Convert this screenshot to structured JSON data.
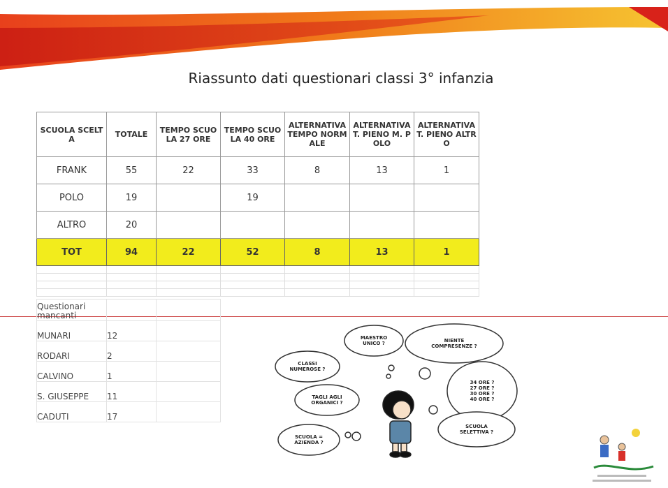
{
  "title": "Riassunto dati questionari classi 3° infanzia",
  "table": {
    "header": [
      "SCUOLA SCELTA",
      "TOTALE",
      "TEMPO SCUOLA 27 ORE",
      "TEMPO SCUOLA 40 ORE",
      "ALTERNATIVA TEMPO NORMALE",
      "ALTERNATIVA T. PIENO M. POLO",
      "ALTERNATIVA T. PIENO ALTRO"
    ],
    "rows": [
      [
        "FRANK",
        55,
        22,
        33,
        8,
        13,
        1
      ],
      [
        "POLO",
        19,
        null,
        19,
        null,
        null,
        null
      ],
      [
        "ALTRO",
        20,
        null,
        null,
        null,
        null,
        null
      ],
      [
        "TOT",
        94,
        22,
        52,
        8,
        13,
        1
      ]
    ]
  },
  "missing": {
    "label": "Questionari mancanti",
    "rows": [
      [
        "MUNARI",
        12
      ],
      [
        "RODARI",
        2
      ],
      [
        "CALVINO",
        1
      ],
      [
        "S. GIUSEPPE",
        11
      ],
      [
        "CADUTI",
        17
      ]
    ]
  },
  "cartoon": {
    "bubbles": [
      {
        "lines": [
          "MAESTRO",
          "UNICO ?"
        ]
      },
      {
        "lines": [
          "NIENTE",
          "COMPRESENZE ?"
        ]
      },
      {
        "lines": [
          "CLASSI",
          "NUMEROSE ?"
        ]
      },
      {
        "lines": [
          "34 ORE ?",
          "27 ORE ?",
          "30 ORE ?",
          "40 ORE ?"
        ]
      },
      {
        "lines": [
          "TAGLI AGLI",
          "ORGANICI ?"
        ]
      },
      {
        "lines": [
          "SCUOLA",
          "SELETTIVA ?"
        ]
      },
      {
        "lines": [
          "SCUOLA =",
          "AZIENDA ?"
        ]
      }
    ]
  }
}
